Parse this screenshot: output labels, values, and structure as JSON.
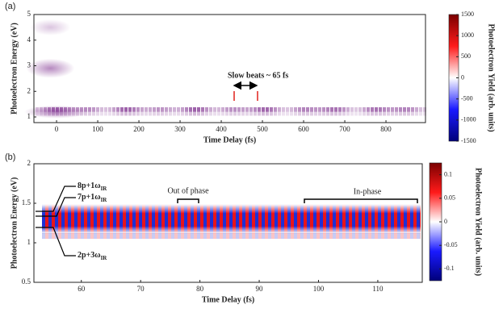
{
  "chart_data": [
    {
      "type": "heatmap",
      "panel_label": "(a)",
      "xlabel": "Time Delay (fs)",
      "ylabel": "Photoelectron Energy (eV)",
      "xlim": [
        -55,
        896
      ],
      "xticks": [
        0,
        100,
        200,
        300,
        400,
        500,
        600,
        700,
        800
      ],
      "ylim": [
        0.78,
        5
      ],
      "yticks": [
        1,
        2,
        3,
        4,
        5
      ],
      "colorbar": {
        "label": "Photoelectron Yield (arb. units)",
        "lim": [
          -1500,
          1500
        ],
        "ticks": [
          1500,
          1000,
          500,
          0,
          -500,
          -1000,
          -1500
        ]
      },
      "annotations": [
        "Slow beats ~ 65 fs"
      ]
    },
    {
      "type": "heatmap",
      "panel_label": "(b)",
      "xlabel": "Time Delay (fs)",
      "ylabel": "Photoelectron Energy (eV)",
      "xlim": [
        52,
        117.5
      ],
      "xticks": [
        60,
        70,
        80,
        90,
        100,
        110
      ],
      "ylim": [
        0.5,
        2
      ],
      "yticks": [
        0.5,
        1,
        1.5,
        2
      ],
      "colorbar": {
        "label": "Photoelectron Yield (arb. units)",
        "lim": [
          -0.125,
          0.125
        ],
        "ticks": [
          0.1,
          0.05,
          0,
          -0.05,
          -0.1
        ]
      },
      "annotations": [
        {
          "text": "8p+1ω",
          "sub": "IR"
        },
        {
          "text": "7p+1ω",
          "sub": "IR"
        },
        {
          "text": "2p+3ω",
          "sub": "IR"
        },
        "Out of phase",
        "In-phase"
      ]
    }
  ]
}
